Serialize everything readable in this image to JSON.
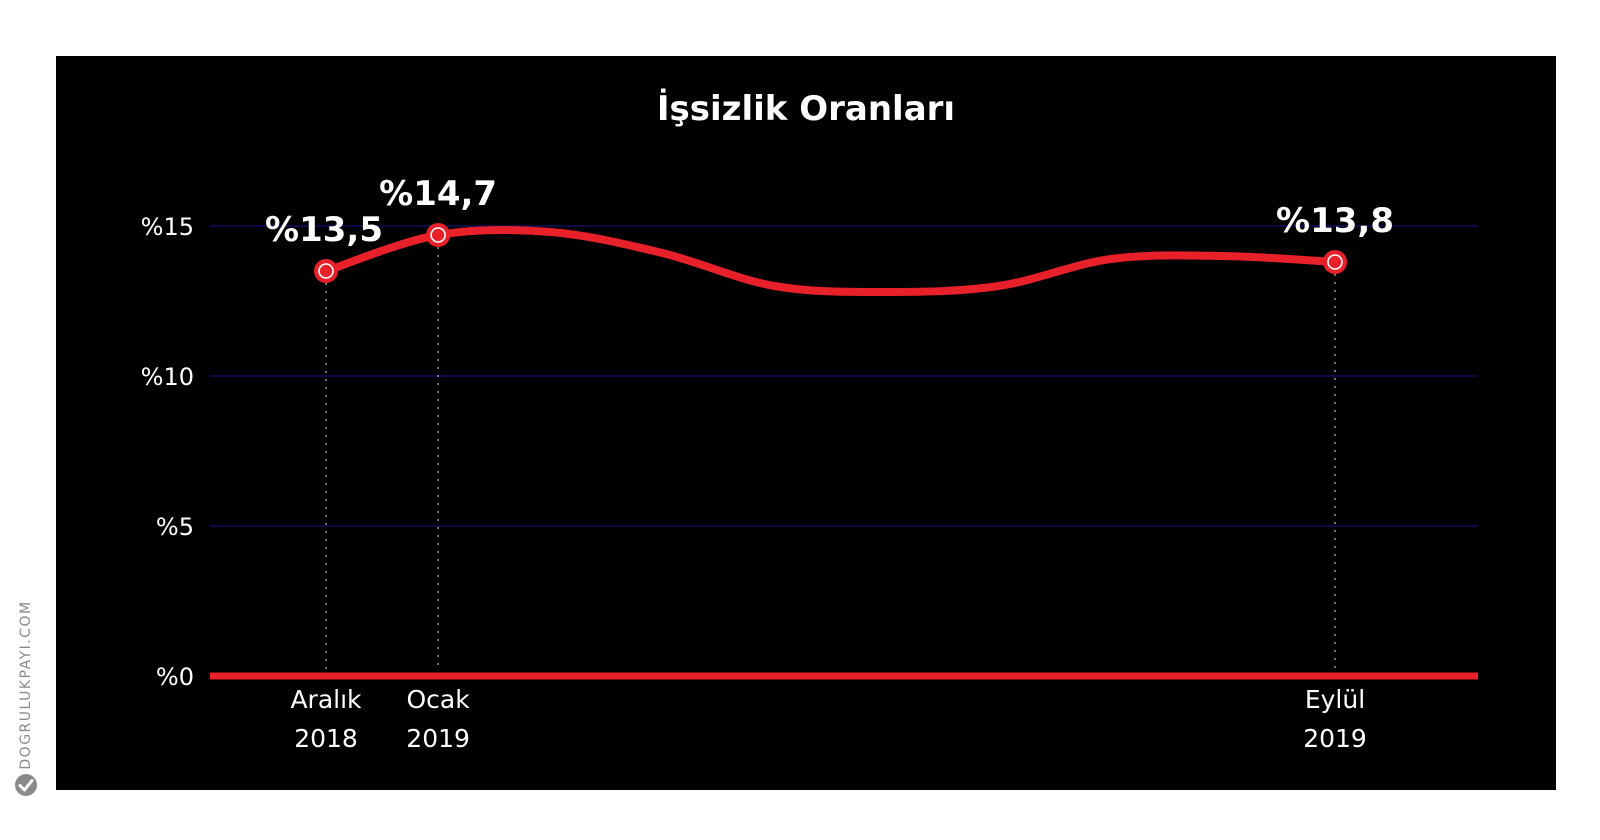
{
  "chart_data": {
    "type": "line",
    "title": "İşsizlik Oranları",
    "xlabel": "",
    "ylabel": "",
    "ylim": [
      0,
      15
    ],
    "yticks": [
      {
        "value": 0,
        "label": "%0"
      },
      {
        "value": 5,
        "label": "%5"
      },
      {
        "value": 10,
        "label": "%10"
      },
      {
        "value": 15,
        "label": "%15"
      }
    ],
    "grid": true,
    "x_start": "2018-12",
    "x_end": "2019-09",
    "series": [
      {
        "values": [
          {
            "x": "2018-12",
            "y": 13.5
          },
          {
            "x": "2019-01",
            "y": 14.7
          },
          {
            "x": "2019-02",
            "y": 14.8
          },
          {
            "x": "2019-03",
            "y": 14.1
          },
          {
            "x": "2019-04",
            "y": 13.0
          },
          {
            "x": "2019-05",
            "y": 12.8
          },
          {
            "x": "2019-06",
            "y": 13.0
          },
          {
            "x": "2019-07",
            "y": 13.9
          },
          {
            "x": "2019-08",
            "y": 14.0
          },
          {
            "x": "2019-09",
            "y": 13.8
          }
        ]
      }
    ],
    "labeled_points": [
      {
        "x": "2018-12",
        "y": 13.5,
        "value_label": "%13,5",
        "date_line1": "Aralık",
        "date_line2": "2018"
      },
      {
        "x": "2019-01",
        "y": 14.7,
        "value_label": "%14,7",
        "date_line1": "Ocak",
        "date_line2": "2019"
      },
      {
        "x": "2019-09",
        "y": 13.8,
        "value_label": "%13,8",
        "date_line1": "Eylül",
        "date_line2": "2019"
      }
    ]
  },
  "colors": {
    "background": "#000000",
    "line": "#e8202a",
    "baseline": "#e8202a",
    "grid": "#0b0b4a",
    "text": "#ffffff",
    "guide": "#9a9a9a"
  },
  "watermark": {
    "text": "DOGRULUKPAYI.COM",
    "icon": "checkmark-logo-icon"
  }
}
